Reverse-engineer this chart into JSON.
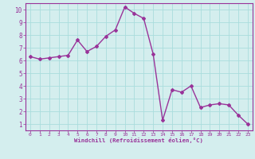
{
  "x": [
    0,
    1,
    2,
    3,
    4,
    5,
    6,
    7,
    8,
    9,
    10,
    11,
    12,
    13,
    14,
    15,
    16,
    17,
    18,
    19,
    20,
    21,
    22,
    23
  ],
  "y": [
    6.3,
    6.1,
    6.2,
    6.3,
    6.4,
    7.6,
    6.7,
    7.1,
    7.9,
    8.4,
    10.2,
    9.7,
    9.3,
    6.5,
    1.3,
    3.7,
    3.5,
    4.0,
    2.3,
    2.5,
    2.6,
    2.5,
    1.7,
    1.0
  ],
  "line_color": "#993399",
  "marker": "D",
  "marker_size": 2,
  "line_width": 1.0,
  "bg_color": "#d4eeee",
  "grid_color": "#aadddd",
  "xlabel": "Windchill (Refroidissement éolien,°C)",
  "xlabel_color": "#993399",
  "tick_color": "#993399",
  "xlim": [
    -0.5,
    23.5
  ],
  "ylim": [
    0.5,
    10.5
  ],
  "yticks": [
    1,
    2,
    3,
    4,
    5,
    6,
    7,
    8,
    9,
    10
  ],
  "xticks": [
    0,
    1,
    2,
    3,
    4,
    5,
    6,
    7,
    8,
    9,
    10,
    11,
    12,
    13,
    14,
    15,
    16,
    17,
    18,
    19,
    20,
    21,
    22,
    23
  ]
}
